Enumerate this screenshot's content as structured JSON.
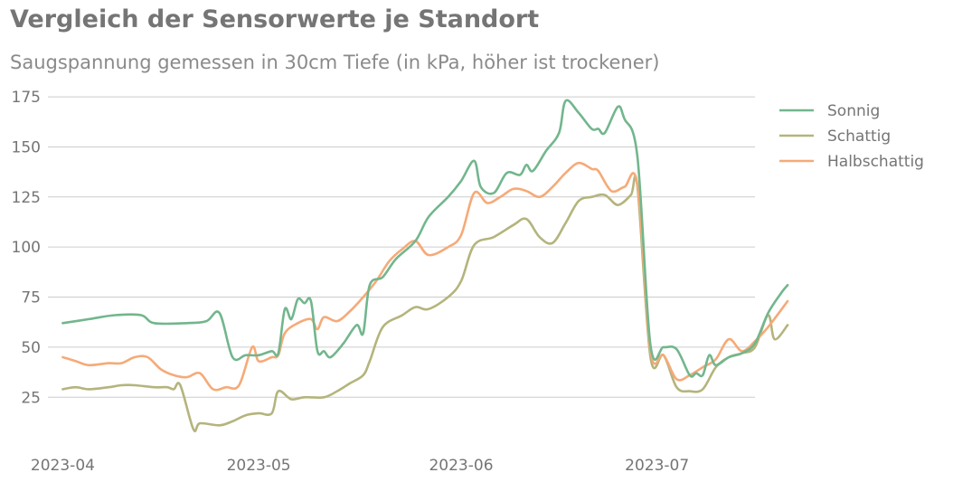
{
  "header": {
    "title": "Vergleich der Sensorwerte je Standort",
    "subtitle": "Saugspannung gemessen in 30cm Tiefe (in kPa, höher ist trockener)"
  },
  "chart_data": {
    "type": "line",
    "title": "Vergleich der Sensorwerte je Standort",
    "subtitle": "Saugspannung gemessen in 30cm Tiefe (in kPa, höher ist trockener)",
    "xlabel": "",
    "ylabel": "",
    "xlim": [
      "2023-03-30",
      "2023-07-16"
    ],
    "ylim": [
      3,
      180
    ],
    "x_ticks": [
      "2023-04",
      "2023-05",
      "2023-06",
      "2023-07"
    ],
    "y_ticks": [
      25,
      50,
      75,
      100,
      125,
      150,
      175
    ],
    "grid": "horizontal",
    "legend_position": "right",
    "series": [
      {
        "name": "Sonnig",
        "color": "#72b68d",
        "points": [
          [
            "2023-04-01",
            62
          ],
          [
            "2023-04-05",
            64
          ],
          [
            "2023-04-09",
            66
          ],
          [
            "2023-04-13",
            66
          ],
          [
            "2023-04-15",
            62
          ],
          [
            "2023-04-20",
            62
          ],
          [
            "2023-04-23",
            63
          ],
          [
            "2023-04-25",
            67
          ],
          [
            "2023-04-27",
            45
          ],
          [
            "2023-04-29",
            46
          ],
          [
            "2023-05-01",
            46
          ],
          [
            "2023-05-03",
            48
          ],
          [
            "2023-05-04",
            47
          ],
          [
            "2023-05-05",
            69
          ],
          [
            "2023-05-06",
            64
          ],
          [
            "2023-05-07",
            74
          ],
          [
            "2023-05-08",
            72
          ],
          [
            "2023-05-09",
            73
          ],
          [
            "2023-05-10",
            48
          ],
          [
            "2023-05-11",
            48
          ],
          [
            "2023-05-12",
            45
          ],
          [
            "2023-05-14",
            52
          ],
          [
            "2023-05-16",
            61
          ],
          [
            "2023-05-17",
            57
          ],
          [
            "2023-05-18",
            81
          ],
          [
            "2023-05-20",
            85
          ],
          [
            "2023-05-22",
            94
          ],
          [
            "2023-05-25",
            103
          ],
          [
            "2023-05-27",
            115
          ],
          [
            "2023-05-30",
            125
          ],
          [
            "2023-06-01",
            133
          ],
          [
            "2023-06-03",
            143
          ],
          [
            "2023-06-04",
            130
          ],
          [
            "2023-06-06",
            127
          ],
          [
            "2023-06-08",
            137
          ],
          [
            "2023-06-10",
            136
          ],
          [
            "2023-06-11",
            141
          ],
          [
            "2023-06-12",
            138
          ],
          [
            "2023-06-14",
            148
          ],
          [
            "2023-06-16",
            157
          ],
          [
            "2023-06-17",
            173
          ],
          [
            "2023-06-19",
            167
          ],
          [
            "2023-06-21",
            159
          ],
          [
            "2023-06-22",
            159
          ],
          [
            "2023-06-23",
            157
          ],
          [
            "2023-06-25",
            170
          ],
          [
            "2023-06-26",
            164
          ],
          [
            "2023-06-28",
            145
          ],
          [
            "2023-06-30",
            51
          ],
          [
            "2023-07-02",
            50
          ],
          [
            "2023-07-04",
            49
          ],
          [
            "2023-07-06",
            36
          ],
          [
            "2023-07-07",
            37
          ],
          [
            "2023-07-08",
            36
          ],
          [
            "2023-07-09",
            46
          ],
          [
            "2023-07-10",
            41
          ],
          [
            "2023-07-12",
            45
          ],
          [
            "2023-07-14",
            47
          ],
          [
            "2023-07-16",
            52
          ],
          [
            "2023-07-18",
            67
          ],
          [
            "2023-07-20",
            77
          ],
          [
            "2023-07-21",
            81
          ]
        ]
      },
      {
        "name": "Schattig",
        "color": "#b4b47d",
        "points": [
          [
            "2023-04-01",
            29
          ],
          [
            "2023-04-03",
            30
          ],
          [
            "2023-04-05",
            29
          ],
          [
            "2023-04-08",
            30
          ],
          [
            "2023-04-10",
            31
          ],
          [
            "2023-04-12",
            31
          ],
          [
            "2023-04-15",
            30
          ],
          [
            "2023-04-17",
            30
          ],
          [
            "2023-04-18",
            29
          ],
          [
            "2023-04-19",
            31
          ],
          [
            "2023-04-21",
            9
          ],
          [
            "2023-04-22",
            12
          ],
          [
            "2023-04-25",
            11
          ],
          [
            "2023-04-27",
            13
          ],
          [
            "2023-04-29",
            16
          ],
          [
            "2023-05-01",
            17
          ],
          [
            "2023-05-03",
            17
          ],
          [
            "2023-05-04",
            28
          ],
          [
            "2023-05-06",
            24
          ],
          [
            "2023-05-08",
            25
          ],
          [
            "2023-05-11",
            25
          ],
          [
            "2023-05-13",
            28
          ],
          [
            "2023-05-15",
            32
          ],
          [
            "2023-05-17",
            36
          ],
          [
            "2023-05-18",
            43
          ],
          [
            "2023-05-20",
            60
          ],
          [
            "2023-05-23",
            66
          ],
          [
            "2023-05-25",
            70
          ],
          [
            "2023-05-27",
            69
          ],
          [
            "2023-05-30",
            75
          ],
          [
            "2023-06-01",
            83
          ],
          [
            "2023-06-03",
            101
          ],
          [
            "2023-06-06",
            105
          ],
          [
            "2023-06-09",
            111
          ],
          [
            "2023-06-11",
            114
          ],
          [
            "2023-06-13",
            105
          ],
          [
            "2023-06-15",
            102
          ],
          [
            "2023-06-17",
            112
          ],
          [
            "2023-06-19",
            123
          ],
          [
            "2023-06-21",
            125
          ],
          [
            "2023-06-23",
            126
          ],
          [
            "2023-06-25",
            121
          ],
          [
            "2023-06-27",
            126
          ],
          [
            "2023-06-28",
            130
          ],
          [
            "2023-06-30",
            45
          ],
          [
            "2023-07-02",
            46
          ],
          [
            "2023-07-04",
            30
          ],
          [
            "2023-07-06",
            28
          ],
          [
            "2023-07-08",
            29
          ],
          [
            "2023-07-10",
            40
          ],
          [
            "2023-07-12",
            45
          ],
          [
            "2023-07-14",
            47
          ],
          [
            "2023-07-16",
            50
          ],
          [
            "2023-07-18",
            66
          ],
          [
            "2023-07-19",
            54
          ],
          [
            "2023-07-21",
            61
          ]
        ]
      },
      {
        "name": "Halbschattig",
        "color": "#f5aa78",
        "points": [
          [
            "2023-04-01",
            45
          ],
          [
            "2023-04-03",
            43
          ],
          [
            "2023-04-05",
            41
          ],
          [
            "2023-04-08",
            42
          ],
          [
            "2023-04-10",
            42
          ],
          [
            "2023-04-12",
            45
          ],
          [
            "2023-04-14",
            45
          ],
          [
            "2023-04-16",
            39
          ],
          [
            "2023-04-18",
            36
          ],
          [
            "2023-04-20",
            35
          ],
          [
            "2023-04-22",
            37
          ],
          [
            "2023-04-24",
            29
          ],
          [
            "2023-04-26",
            30
          ],
          [
            "2023-04-28",
            31
          ],
          [
            "2023-04-30",
            50
          ],
          [
            "2023-05-01",
            43
          ],
          [
            "2023-05-03",
            45
          ],
          [
            "2023-05-04",
            46
          ],
          [
            "2023-05-05",
            57
          ],
          [
            "2023-05-07",
            62
          ],
          [
            "2023-05-09",
            64
          ],
          [
            "2023-05-10",
            59
          ],
          [
            "2023-05-11",
            65
          ],
          [
            "2023-05-13",
            63
          ],
          [
            "2023-05-15",
            68
          ],
          [
            "2023-05-17",
            75
          ],
          [
            "2023-05-19",
            83
          ],
          [
            "2023-05-21",
            93
          ],
          [
            "2023-05-23",
            99
          ],
          [
            "2023-05-25",
            103
          ],
          [
            "2023-05-27",
            96
          ],
          [
            "2023-05-30",
            100
          ],
          [
            "2023-06-01",
            106
          ],
          [
            "2023-06-03",
            127
          ],
          [
            "2023-06-05",
            122
          ],
          [
            "2023-06-07",
            125
          ],
          [
            "2023-06-09",
            129
          ],
          [
            "2023-06-11",
            128
          ],
          [
            "2023-06-13",
            125
          ],
          [
            "2023-06-15",
            130
          ],
          [
            "2023-06-17",
            137
          ],
          [
            "2023-06-19",
            142
          ],
          [
            "2023-06-21",
            139
          ],
          [
            "2023-06-22",
            138
          ],
          [
            "2023-06-24",
            128
          ],
          [
            "2023-06-26",
            130
          ],
          [
            "2023-06-28",
            131
          ],
          [
            "2023-06-30",
            48
          ],
          [
            "2023-07-02",
            46
          ],
          [
            "2023-07-04",
            34
          ],
          [
            "2023-07-06",
            36
          ],
          [
            "2023-07-08",
            40
          ],
          [
            "2023-07-10",
            44
          ],
          [
            "2023-07-12",
            54
          ],
          [
            "2023-07-14",
            48
          ],
          [
            "2023-07-16",
            53
          ],
          [
            "2023-07-18",
            60
          ],
          [
            "2023-07-21",
            73
          ]
        ]
      }
    ]
  }
}
